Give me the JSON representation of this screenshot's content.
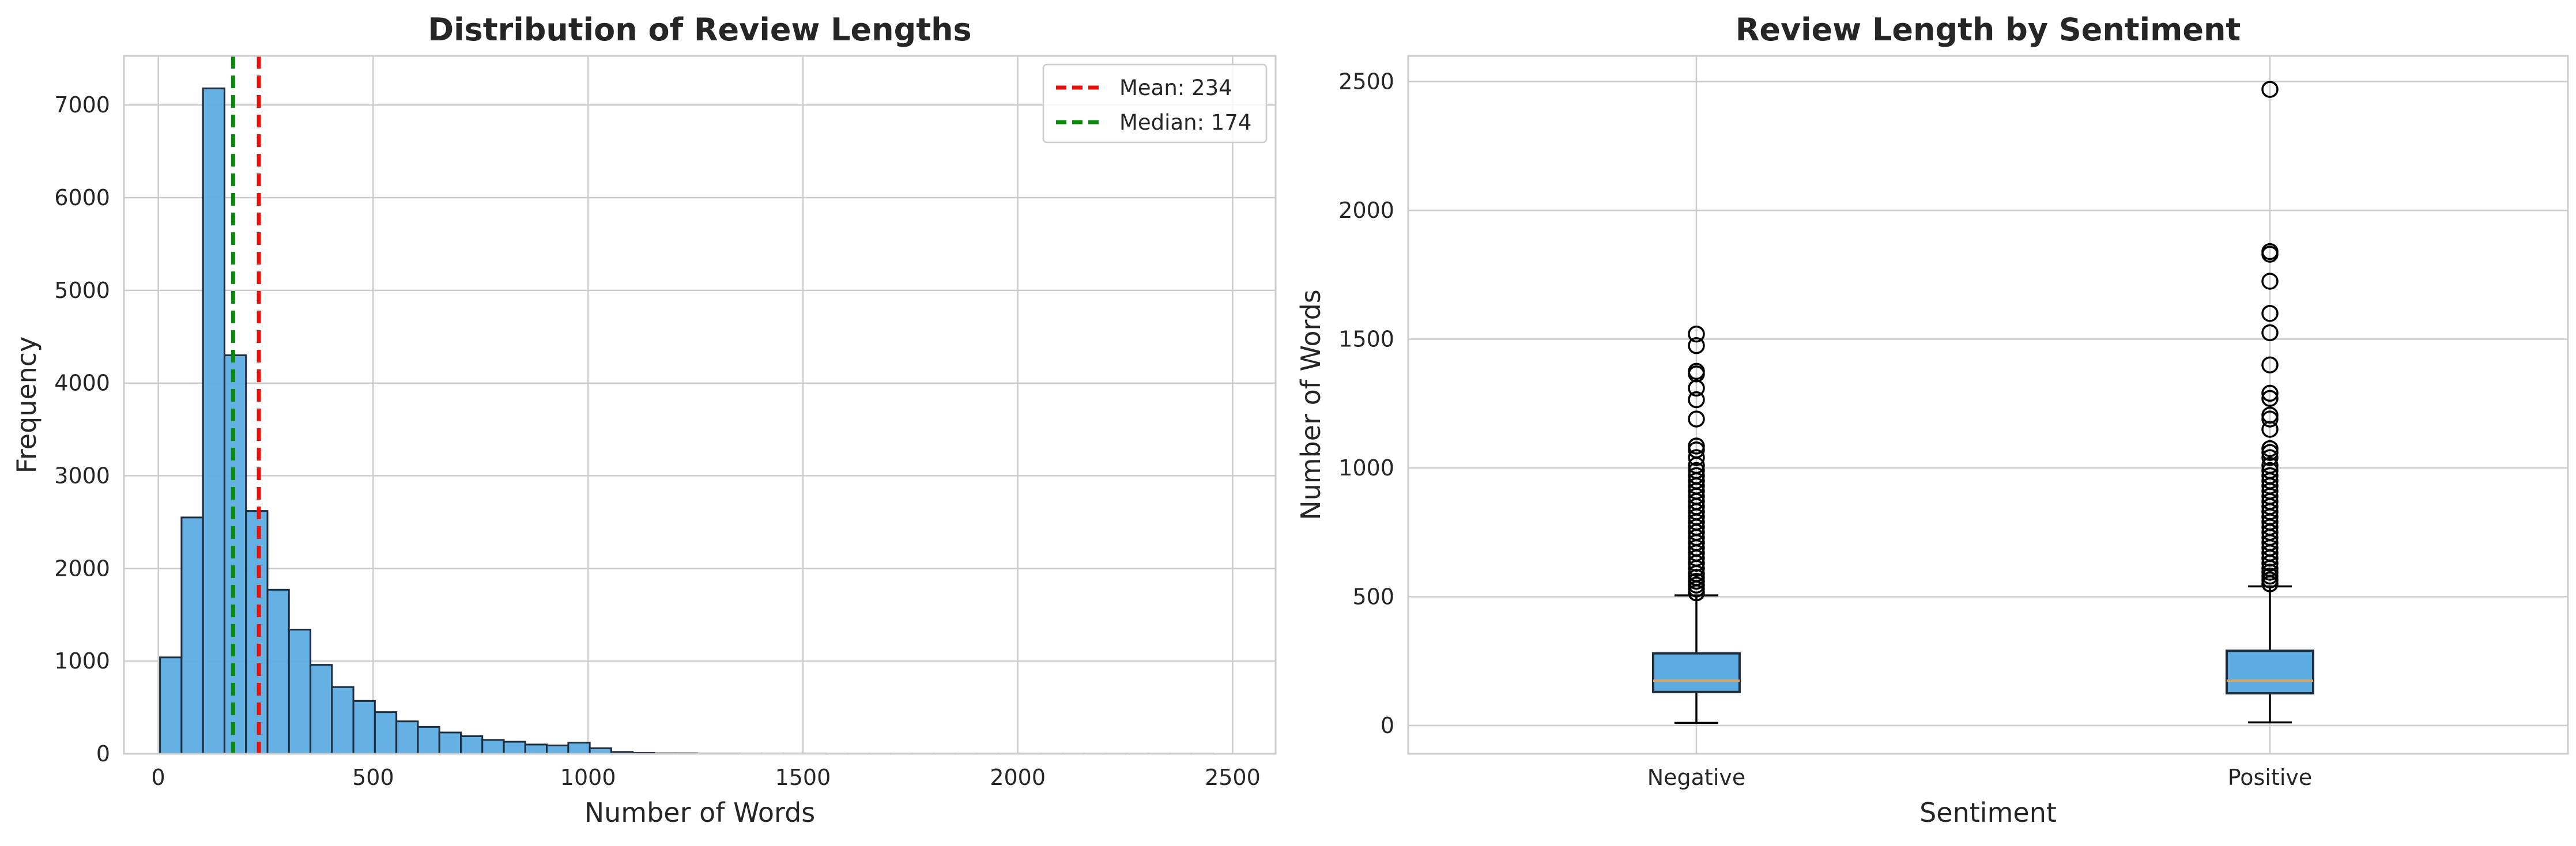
{
  "colors": {
    "bar_fill": "#5dade2",
    "bar_edge": "#1f2d3d",
    "mean_line": "#e8100c",
    "median_line": "#0a8a0a",
    "median_box_line": "#e1a35a",
    "grid": "#cccccc",
    "spine": "#cccccc"
  },
  "chart_data": [
    {
      "type": "bar",
      "subtype": "histogram",
      "title": "Distribution of Review Lengths",
      "xlabel": "Number of Words",
      "ylabel": "Frequency",
      "xlim": [
        -80,
        2600
      ],
      "ylim": [
        0,
        7530
      ],
      "xticks": [
        0,
        500,
        1000,
        1500,
        2000,
        2500
      ],
      "yticks": [
        0,
        1000,
        2000,
        3000,
        4000,
        5000,
        6000,
        7000
      ],
      "bin_start": 4,
      "bin_width": 50,
      "values": [
        1040,
        2550,
        7180,
        4300,
        2620,
        1770,
        1340,
        960,
        720,
        570,
        450,
        350,
        290,
        230,
        190,
        150,
        130,
        100,
        90,
        120,
        60,
        20,
        10,
        5,
        5,
        3,
        3,
        2,
        2,
        2,
        2,
        1,
        1,
        1,
        1,
        1,
        1,
        1,
        1,
        1,
        1,
        1,
        1,
        1,
        1,
        1,
        1,
        1,
        1
      ],
      "mean": 234,
      "median": 174,
      "legend": [
        {
          "label": "Mean: 234",
          "color_key": "mean_line"
        },
        {
          "label": "Median: 174",
          "color_key": "median_line"
        }
      ],
      "legend_position": "top-right",
      "grid": true
    },
    {
      "type": "box",
      "title": "Review Length by Sentiment",
      "xlabel": "Sentiment",
      "ylabel": "Number of Words",
      "categories": [
        "Negative",
        "Positive"
      ],
      "ylim": [
        -110,
        2600
      ],
      "yticks": [
        0,
        500,
        1000,
        1500,
        2000,
        2500
      ],
      "boxes": [
        {
          "name": "Negative",
          "whisker_low": 10,
          "q1": 130,
          "median": 174,
          "q3": 280,
          "whisker_high": 505,
          "outliers": [
            515,
            530,
            545,
            560,
            575,
            590,
            610,
            630,
            650,
            670,
            690,
            710,
            730,
            750,
            770,
            790,
            810,
            830,
            850,
            870,
            890,
            910,
            930,
            950,
            970,
            990,
            1010,
            1040,
            1070,
            1085,
            1190,
            1265,
            1310,
            1365,
            1375,
            1475,
            1520
          ]
        },
        {
          "name": "Positive",
          "whisker_low": 12,
          "q1": 125,
          "median": 174,
          "q3": 290,
          "whisker_high": 540,
          "outliers": [
            550,
            565,
            580,
            595,
            610,
            630,
            650,
            670,
            690,
            710,
            730,
            750,
            770,
            790,
            810,
            830,
            850,
            870,
            890,
            910,
            930,
            950,
            970,
            990,
            1010,
            1040,
            1060,
            1075,
            1150,
            1190,
            1205,
            1270,
            1290,
            1400,
            1525,
            1600,
            1725,
            1830,
            1840,
            2470
          ]
        }
      ],
      "grid": true
    }
  ]
}
